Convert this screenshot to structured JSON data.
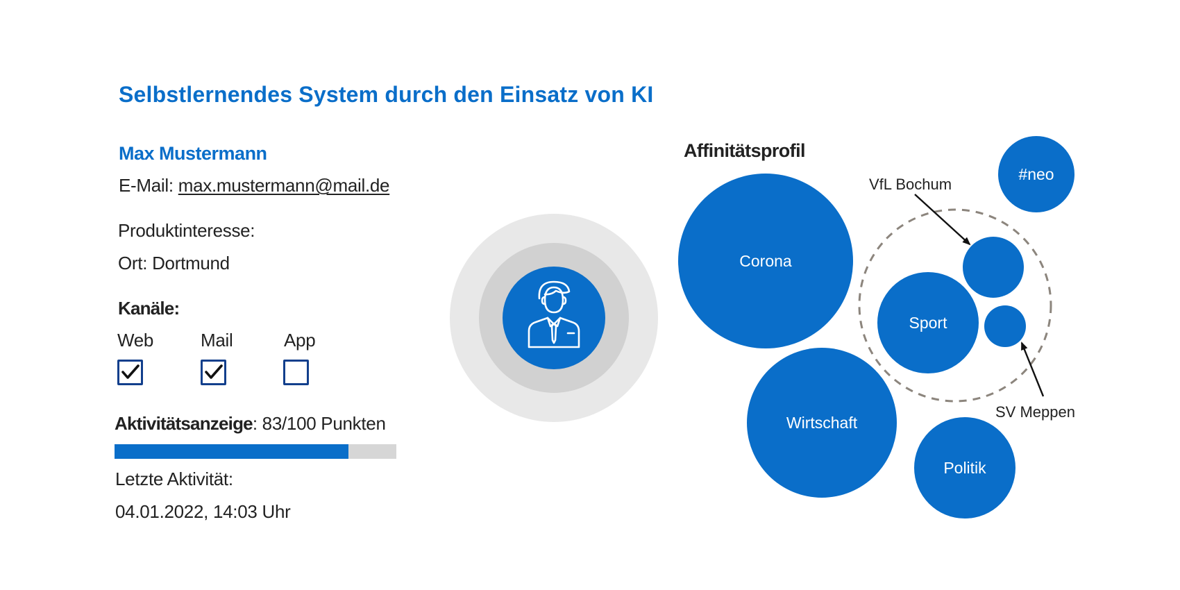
{
  "title": "Selbstlernendes System durch den Einsatz von KI",
  "profile": {
    "name": "Max Mustermann",
    "email_label": "E-Mail:",
    "email_value": "max.mustermann@mail.de",
    "interest_label": "Produktinteresse:",
    "location_label": "Ort:",
    "location_value": "Dortmund"
  },
  "channels": {
    "heading": "Kanäle:",
    "items": [
      {
        "label": "Web",
        "checked": true
      },
      {
        "label": "Mail",
        "checked": true
      },
      {
        "label": "App",
        "checked": false
      }
    ]
  },
  "activity": {
    "label": "Aktivitätsanzeige",
    "score_text": ": 83/100 Punkten",
    "score": 83,
    "max": 100,
    "last_label": "Letzte Aktivität:",
    "last_value": "04.01.2022, 14:03 Uhr"
  },
  "user_icon": "user-businessman-icon",
  "affinity": {
    "heading": "Affinitätsprofil",
    "bubbles": [
      {
        "label": "Corona"
      },
      {
        "label": "Wirtschaft"
      },
      {
        "label": "Politik"
      },
      {
        "label": "#neo"
      },
      {
        "label": "Sport"
      }
    ],
    "sub_topics": {
      "group": "Sport",
      "items": [
        {
          "label": "VfL Bochum"
        },
        {
          "label": "SV Meppen"
        }
      ]
    }
  },
  "colors": {
    "accent": "#0a6ec9",
    "checkbox_border": "#123f8c",
    "text": "#222222",
    "ring_outer": "#e8e8e8",
    "ring_inner": "#d1d1d1",
    "dashed_circle": "#8c857d",
    "bar_track": "#d6d6d6"
  }
}
